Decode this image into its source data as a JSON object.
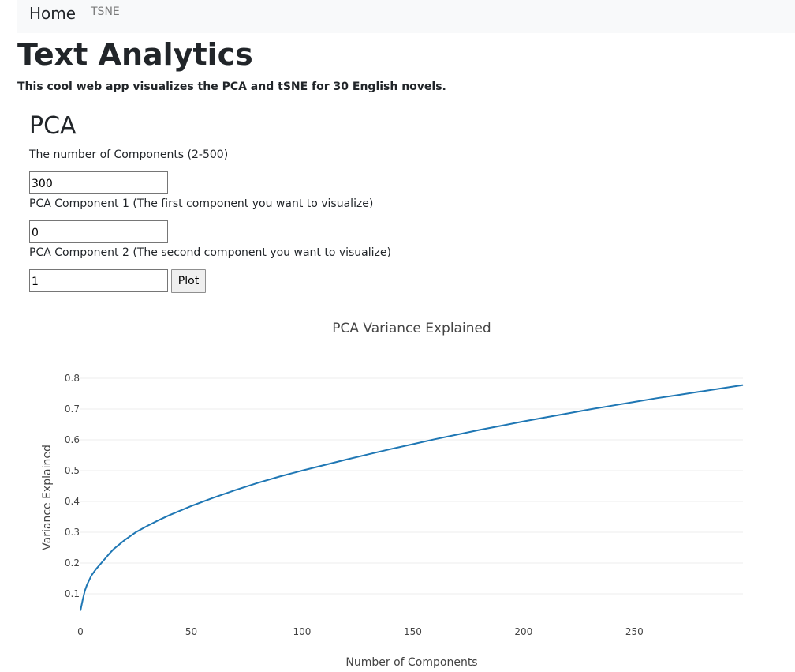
{
  "nav": {
    "home_label": "Home",
    "tsne_label": "TSNE"
  },
  "page": {
    "title": "Text Analytics",
    "subtitle": "This cool web app visualizes the PCA and tSNE for 30 English novels."
  },
  "pca_form": {
    "heading": "PCA",
    "components_label": "The number of Components (2-500)",
    "components_value": "300",
    "component1_label": "PCA Component 1 (The first component you want to visualize)",
    "component1_value": "0",
    "component2_label": "PCA Component 2 (The second component you want to visualize)",
    "component2_value": "1",
    "plot_button_label": "Plot"
  },
  "chart_data": {
    "type": "line",
    "title": "PCA Variance Explained",
    "xlabel": "Number of Components",
    "ylabel": "Variance Explained",
    "xlim": [
      0,
      299
    ],
    "ylim": [
      0.045,
      0.81
    ],
    "xticks": [
      "0",
      "50",
      "100",
      "150",
      "200",
      "250"
    ],
    "yticks": [
      "0.1",
      "0.2",
      "0.3",
      "0.4",
      "0.5",
      "0.6",
      "0.7",
      "0.8"
    ],
    "grid": true,
    "line_color": "#1f77b4",
    "x": [
      0,
      1,
      2,
      3,
      5,
      7,
      10,
      13,
      15,
      20,
      25,
      30,
      35,
      40,
      50,
      60,
      70,
      80,
      90,
      100,
      110,
      120,
      130,
      140,
      150,
      160,
      170,
      180,
      190,
      200,
      210,
      220,
      230,
      240,
      250,
      260,
      270,
      280,
      290,
      299
    ],
    "y": [
      0.045,
      0.08,
      0.11,
      0.13,
      0.16,
      0.18,
      0.205,
      0.23,
      0.245,
      0.275,
      0.3,
      0.32,
      0.338,
      0.355,
      0.385,
      0.412,
      0.437,
      0.46,
      0.481,
      0.5,
      0.518,
      0.536,
      0.553,
      0.57,
      0.586,
      0.602,
      0.617,
      0.632,
      0.646,
      0.66,
      0.673,
      0.686,
      0.699,
      0.711,
      0.723,
      0.735,
      0.746,
      0.757,
      0.768,
      0.778
    ]
  }
}
